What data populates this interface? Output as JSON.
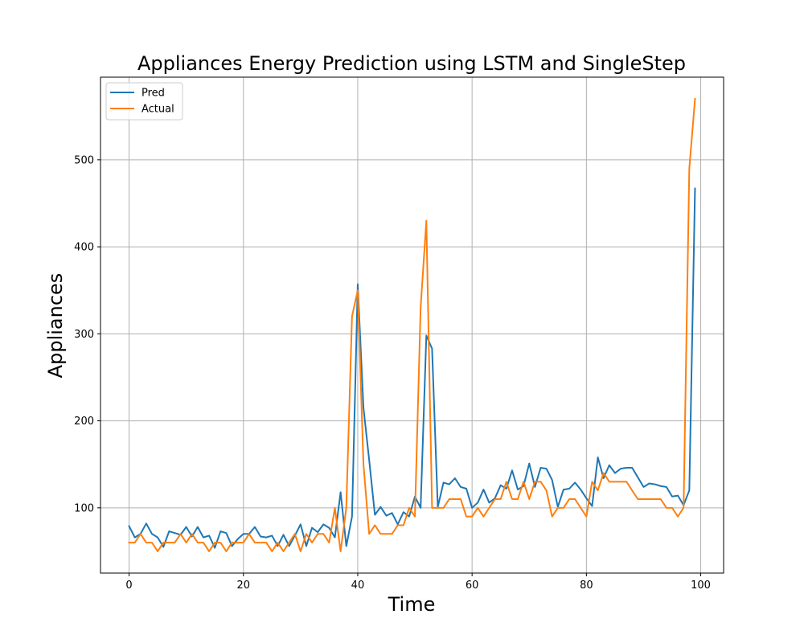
{
  "chart_data": {
    "type": "line",
    "title": "Appliances Energy Prediction using LSTM and SingleStep",
    "xlabel": "Time",
    "ylabel": "Appliances",
    "xlim": [
      -5,
      104
    ],
    "ylim": [
      25,
      595
    ],
    "xticks": [
      0,
      20,
      40,
      60,
      80,
      100
    ],
    "yticks": [
      100,
      200,
      300,
      400,
      500
    ],
    "grid": true,
    "legend_position": "upper-left",
    "x": [
      0,
      1,
      2,
      3,
      4,
      5,
      6,
      7,
      8,
      9,
      10,
      11,
      12,
      13,
      14,
      15,
      16,
      17,
      18,
      19,
      20,
      21,
      22,
      23,
      24,
      25,
      26,
      27,
      28,
      29,
      30,
      31,
      32,
      33,
      34,
      35,
      36,
      37,
      38,
      39,
      40,
      41,
      42,
      43,
      44,
      45,
      46,
      47,
      48,
      49,
      50,
      51,
      52,
      53,
      54,
      55,
      56,
      57,
      58,
      59,
      60,
      61,
      62,
      63,
      64,
      65,
      66,
      67,
      68,
      69,
      70,
      71,
      72,
      73,
      74,
      75,
      76,
      77,
      78,
      79,
      80,
      81,
      82,
      83,
      84,
      85,
      86,
      87,
      88,
      89,
      90,
      91,
      92,
      93,
      94,
      95,
      96,
      97,
      98,
      99
    ],
    "series": [
      {
        "name": "Pred",
        "color": "#1f77b4",
        "values": [
          79,
          66,
          70,
          82,
          70,
          66,
          55,
          73,
          71,
          69,
          78,
          67,
          78,
          66,
          68,
          54,
          73,
          71,
          56,
          64,
          70,
          70,
          78,
          67,
          66,
          68,
          56,
          69,
          56,
          68,
          81,
          56,
          77,
          72,
          81,
          77,
          66,
          118,
          56,
          90,
          357,
          215,
          155,
          92,
          101,
          91,
          94,
          81,
          95,
          90,
          113,
          100,
          298,
          283,
          101,
          129,
          127,
          134,
          124,
          122,
          100,
          106,
          121,
          106,
          111,
          126,
          122,
          143,
          121,
          125,
          151,
          124,
          146,
          145,
          132,
          101,
          121,
          122,
          129,
          121,
          111,
          102,
          158,
          134,
          149,
          140,
          145,
          146,
          146,
          135,
          124,
          128,
          127,
          125,
          124,
          113,
          114,
          103,
          120,
          467
        ]
      },
      {
        "name": "Actual",
        "color": "#ff7f0e",
        "values": [
          60,
          60,
          70,
          60,
          60,
          50,
          60,
          60,
          60,
          70,
          60,
          70,
          60,
          60,
          50,
          60,
          60,
          50,
          60,
          60,
          60,
          70,
          60,
          60,
          60,
          50,
          60,
          50,
          60,
          70,
          50,
          70,
          60,
          70,
          70,
          60,
          100,
          50,
          100,
          320,
          350,
          150,
          70,
          80,
          70,
          70,
          70,
          80,
          80,
          100,
          90,
          330,
          430,
          100,
          100,
          100,
          110,
          110,
          110,
          90,
          90,
          100,
          90,
          100,
          110,
          110,
          130,
          110,
          110,
          130,
          110,
          130,
          130,
          120,
          90,
          100,
          100,
          110,
          110,
          100,
          90,
          130,
          120,
          140,
          130,
          130,
          130,
          130,
          120,
          110,
          110,
          110,
          110,
          110,
          100,
          100,
          90,
          100,
          490,
          570
        ]
      }
    ]
  }
}
